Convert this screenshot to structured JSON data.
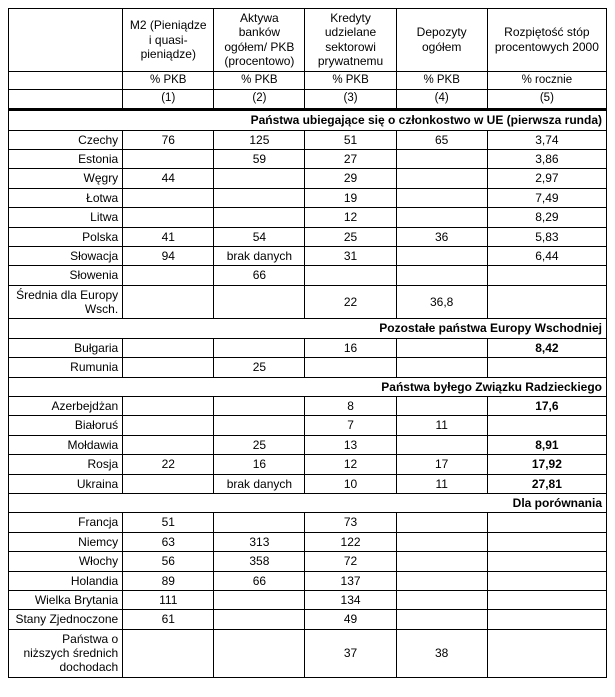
{
  "columns": {
    "row_label_blank": "",
    "c1": {
      "title": "M2 (Pieniądze i quasi-pieniądze)",
      "unit": "% PKB",
      "idx": "(1)"
    },
    "c2": {
      "title": "Aktywa banków ogółem/ PKB (procentowo)",
      "unit": "% PKB",
      "idx": "(2)"
    },
    "c3": {
      "title": "Kredyty udzielane sektorowi prywatnemu",
      "unit": "% PKB",
      "idx": "(3)"
    },
    "c4": {
      "title": "Depozyty ogółem",
      "unit": "% PKB",
      "idx": "(4)"
    },
    "c5": {
      "title": "Rozpiętość stóp procentowych 2000",
      "unit": "% rocznie",
      "idx": "(5)"
    }
  },
  "sections": {
    "s1": "Państwa ubiegające się o członkostwo w UE (pierwsza runda)",
    "s2": "Pozostałe państwa Europy Wschodniej",
    "s3": "Państwa byłego Związku Radzieckiego",
    "s4": "Dla porównania"
  },
  "r": {
    "czechy": {
      "label": "Czechy",
      "c1": "76",
      "c2": "125",
      "c3": "51",
      "c4": "65",
      "c5": "3,74"
    },
    "estonia": {
      "label": "Estonia",
      "c1": "",
      "c2": "59",
      "c3": "27",
      "c4": "",
      "c5": "3,86"
    },
    "wegry": {
      "label": "Węgry",
      "c1": "44",
      "c2": "",
      "c3": "29",
      "c4": "",
      "c5": "2,97"
    },
    "lotwa": {
      "label": "Łotwa",
      "c1": "",
      "c2": "",
      "c3": "19",
      "c4": "",
      "c5": "7,49"
    },
    "litwa": {
      "label": "Litwa",
      "c1": "",
      "c2": "",
      "c3": "12",
      "c4": "",
      "c5": "8,29"
    },
    "polska": {
      "label": "Polska",
      "c1": "41",
      "c2": "54",
      "c3": "25",
      "c4": "36",
      "c5": "5,83"
    },
    "slowacja": {
      "label": "Słowacja",
      "c1": "94",
      "c2": "brak danych",
      "c3": "31",
      "c4": "",
      "c5": "6,44"
    },
    "slowenia": {
      "label": "Słowenia",
      "c1": "",
      "c2": "66",
      "c3": "",
      "c4": "",
      "c5": ""
    },
    "srednia": {
      "label": "Średnia dla Europy Wsch.",
      "c1": "",
      "c2": "",
      "c3": "22",
      "c4": "36,8",
      "c5": ""
    },
    "bulgaria": {
      "label": "Bułgaria",
      "c1": "",
      "c2": "",
      "c3": "16",
      "c4": "",
      "c5": "8,42"
    },
    "rumunia": {
      "label": "Rumunia",
      "c1": "",
      "c2": "25",
      "c3": "",
      "c4": "",
      "c5": ""
    },
    "azer": {
      "label": "Azerbejdżan",
      "c1": "",
      "c2": "",
      "c3": "8",
      "c4": "",
      "c5": "17,6"
    },
    "bialorus": {
      "label": "Białoruś",
      "c1": "",
      "c2": "",
      "c3": "7",
      "c4": "11",
      "c5": ""
    },
    "moldawia": {
      "label": "Mołdawia",
      "c1": "",
      "c2": "25",
      "c3": "13",
      "c4": "",
      "c5": "8,91"
    },
    "rosja": {
      "label": "Rosja",
      "c1": "22",
      "c2": "16",
      "c3": "12",
      "c4": "17",
      "c5": "17,92"
    },
    "ukraina": {
      "label": "Ukraina",
      "c1": "",
      "c2": "brak danych",
      "c3": "10",
      "c4": "11",
      "c5": "27,81"
    },
    "francja": {
      "label": "Francja",
      "c1": "51",
      "c2": "",
      "c3": "73",
      "c4": "",
      "c5": ""
    },
    "niemcy": {
      "label": "Niemcy",
      "c1": "63",
      "c2": "313",
      "c3": "122",
      "c4": "",
      "c5": ""
    },
    "wlochy": {
      "label": "Włochy",
      "c1": "56",
      "c2": "358",
      "c3": "72",
      "c4": "",
      "c5": ""
    },
    "holandia": {
      "label": "Holandia",
      "c1": "89",
      "c2": "66",
      "c3": "137",
      "c4": "",
      "c5": ""
    },
    "uk": {
      "label": "Wielka Brytania",
      "c1": "111",
      "c2": "",
      "c3": "134",
      "c4": "",
      "c5": ""
    },
    "usa": {
      "label": "Stany Zjednoczone",
      "c1": "61",
      "c2": "",
      "c3": "49",
      "c4": "",
      "c5": ""
    },
    "lowinc": {
      "label": "Państwa o niższych średnich dochodach",
      "c1": "",
      "c2": "",
      "c3": "37",
      "c4": "38",
      "c5": ""
    }
  },
  "bold_c5": [
    "bulgaria",
    "azer",
    "moldawia",
    "rosja",
    "ukraina"
  ]
}
